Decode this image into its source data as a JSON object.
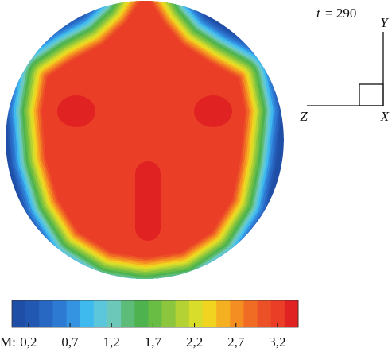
{
  "chart_data": {
    "type": "contour",
    "time_symbol": "t",
    "time_text": "= 290",
    "axes_labels": {
      "y": "Y",
      "z": "Z",
      "x": "X"
    },
    "colorbar": {
      "label": "M:",
      "clim": [
        0,
        3.45
      ],
      "ticks": [
        {
          "value": 0.2,
          "label": "0,2"
        },
        {
          "value": 0.7,
          "label": "0,7"
        },
        {
          "value": 1.2,
          "label": "1,2"
        },
        {
          "value": 1.7,
          "label": "1,7"
        },
        {
          "value": 2.2,
          "label": "2,2"
        },
        {
          "value": 2.7,
          "label": "2,7"
        },
        {
          "value": 3.2,
          "label": "3,2"
        }
      ],
      "colors": [
        "#1f4ea6",
        "#2358b2",
        "#2868c2",
        "#2d7ad2",
        "#3594e2",
        "#3fbaee",
        "#5cc6da",
        "#6cc8b8",
        "#5cbc78",
        "#4eb24e",
        "#6abd44",
        "#8cc63e",
        "#b4d234",
        "#d8dc2a",
        "#f0d420",
        "#f4b020",
        "#f48e22",
        "#f06c24",
        "#ec5026",
        "#ea3e27",
        "#e02222"
      ]
    }
  }
}
